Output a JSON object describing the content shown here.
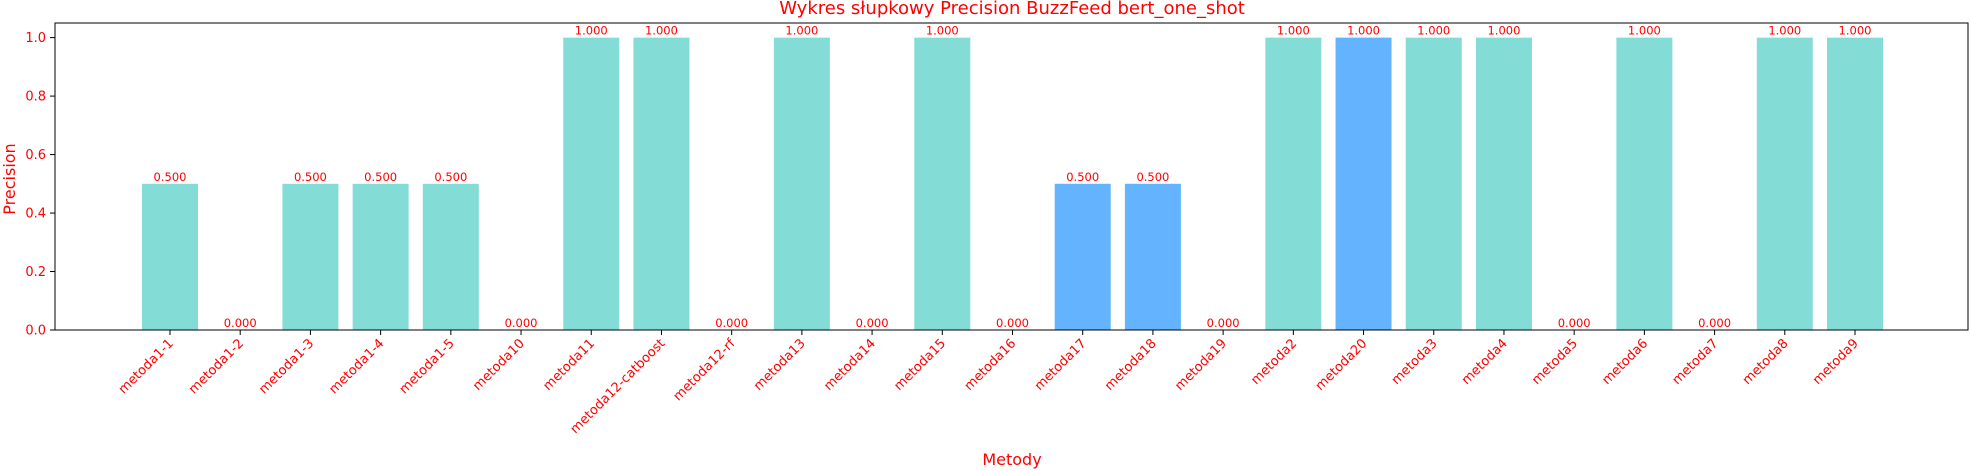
{
  "chart_data": {
    "type": "bar",
    "title": "Wykres słupkowy Precision BuzzFeed bert_one_shot",
    "xlabel": "Metody",
    "ylabel": "Precision",
    "ylim": [
      0,
      1.05
    ],
    "yticks": [
      "0.0",
      "0.2",
      "0.4",
      "0.6",
      "0.8",
      "1.0"
    ],
    "text_color": "#ff0000",
    "categories": [
      "metoda1-1",
      "metoda1-2",
      "metoda1-3",
      "metoda1-4",
      "metoda1-5",
      "metoda10",
      "metoda11",
      "metoda12-catboost",
      "metoda12-rf",
      "metoda13",
      "metoda14",
      "metoda15",
      "metoda16",
      "metoda17",
      "metoda18",
      "metoda19",
      "metoda2",
      "metoda20",
      "metoda3",
      "metoda4",
      "metoda5",
      "metoda6",
      "metoda7",
      "metoda8",
      "metoda9"
    ],
    "values": [
      0.5,
      0.0,
      0.5,
      0.5,
      0.5,
      0.0,
      1.0,
      1.0,
      0.0,
      1.0,
      0.0,
      1.0,
      0.0,
      0.5,
      0.5,
      0.0,
      1.0,
      1.0,
      1.0,
      1.0,
      0.0,
      1.0,
      0.0,
      1.0,
      1.0
    ],
    "value_labels": [
      "0.500",
      "0.000",
      "0.500",
      "0.500",
      "0.500",
      "0.000",
      "1.000",
      "1.000",
      "0.000",
      "1.000",
      "0.000",
      "1.000",
      "0.000",
      "0.500",
      "0.500",
      "0.000",
      "1.000",
      "1.000",
      "1.000",
      "1.000",
      "0.000",
      "1.000",
      "0.000",
      "1.000",
      "1.000"
    ],
    "bar_colors": [
      "#84dcd7",
      "#84dcd7",
      "#84dcd7",
      "#84dcd7",
      "#84dcd7",
      "#84dcd7",
      "#84dcd7",
      "#84dcd7",
      "#84dcd7",
      "#84dcd7",
      "#84dcd7",
      "#84dcd7",
      "#84dcd7",
      "#63b3ff",
      "#63b3ff",
      "#84dcd7",
      "#84dcd7",
      "#63b3ff",
      "#84dcd7",
      "#84dcd7",
      "#84dcd7",
      "#84dcd7",
      "#84dcd7",
      "#84dcd7",
      "#84dcd7"
    ],
    "grid": false,
    "legend": "none"
  }
}
